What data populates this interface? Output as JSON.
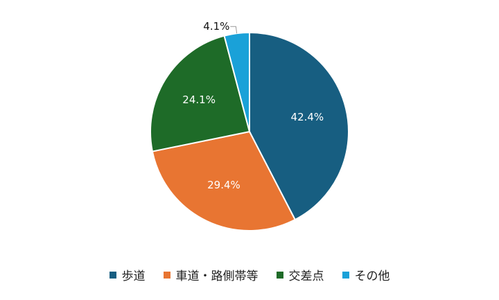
{
  "chart_data": {
    "type": "pie",
    "categories": [
      "歩道",
      "車道・路側帯等",
      "交差点",
      "その他"
    ],
    "values": [
      42.4,
      29.4,
      24.1,
      4.1
    ],
    "value_labels": [
      "42.4%",
      "29.4%",
      "24.1%",
      "4.1%"
    ],
    "colors": [
      "#175e81",
      "#e87532",
      "#1e6b28",
      "#1aa1d8"
    ],
    "legend": "bottom"
  }
}
